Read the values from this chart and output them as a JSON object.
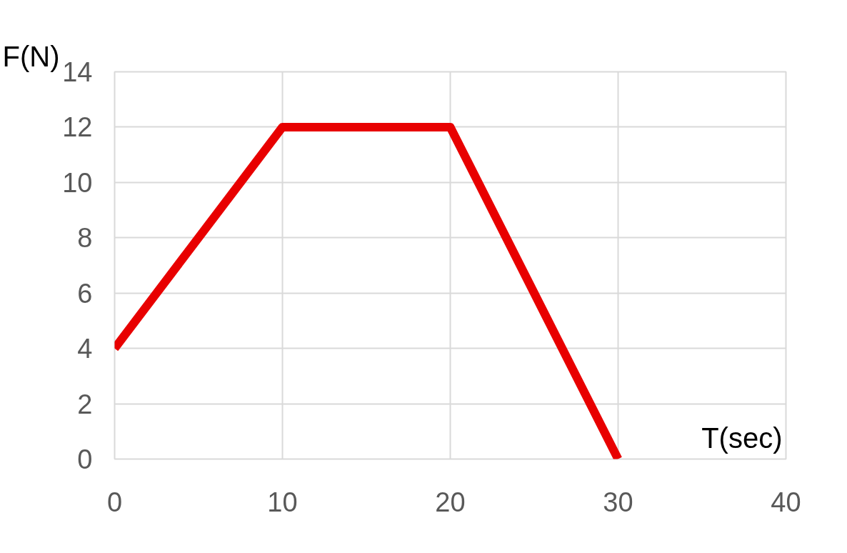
{
  "chart_data": {
    "type": "line",
    "xlabel": "T(sec)",
    "ylabel": "F(N)",
    "x": [
      0,
      10,
      20,
      30
    ],
    "series": [
      {
        "color": "#e80000",
        "values": [
          4,
          12,
          12,
          0
        ]
      }
    ],
    "xlim": [
      0,
      40
    ],
    "ylim": [
      0,
      14
    ],
    "xticks": [
      0,
      10,
      20,
      30,
      40
    ],
    "yticks": [
      0,
      2,
      4,
      6,
      8,
      10,
      12,
      14
    ],
    "grid": true,
    "marker": "none",
    "line_style": "solid"
  }
}
